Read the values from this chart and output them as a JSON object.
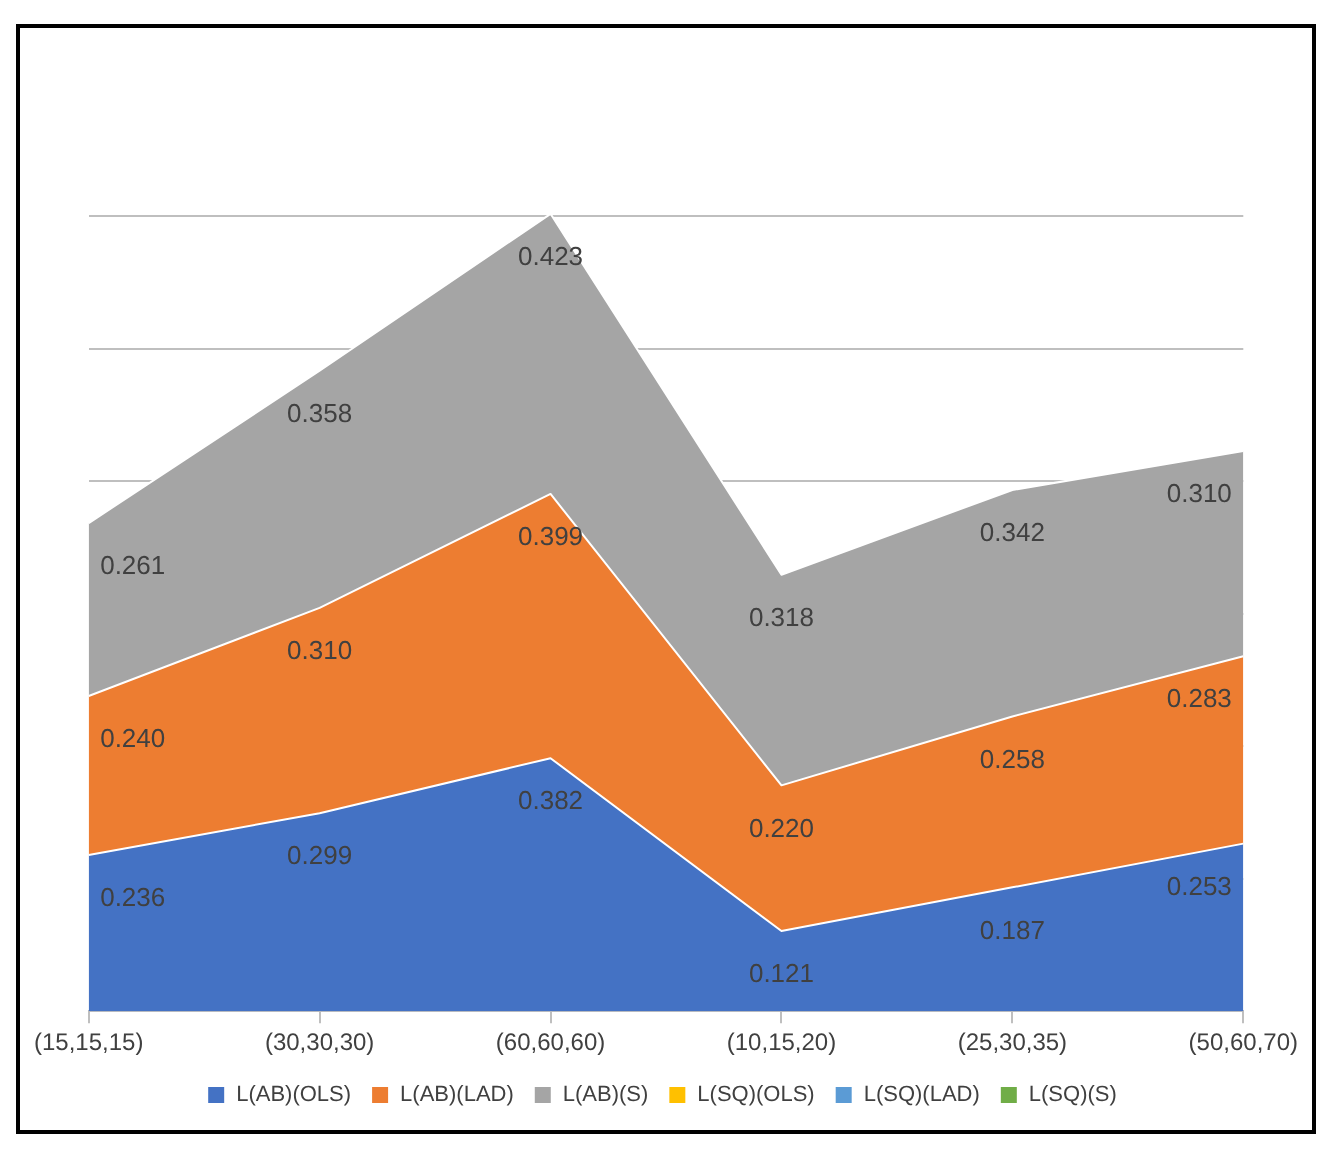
{
  "chart_data": {
    "type": "area",
    "stacked": true,
    "grid": "y",
    "legend": "bottom",
    "tick_labels": "x",
    "categories": [
      "(15,15,15)",
      "(30,30,30)",
      "(60,60,60)",
      "(10,15,20)",
      "(25,30,35)",
      "(50,60,70)"
    ],
    "yticks": [
      {
        "value": 0,
        "label": null
      },
      {
        "value": 0.2,
        "label": null
      },
      {
        "value": 0.4,
        "label": null
      },
      {
        "value": 0.6,
        "label": null
      },
      {
        "value": 0.8,
        "label": null
      },
      {
        "value": 1.0,
        "label": null
      },
      {
        "value": 1.2,
        "label": null
      }
    ],
    "series": [
      {
        "name": "L(AB)(OLS)",
        "color": "#4472c4",
        "values": [
          0.236,
          0.299,
          0.382,
          0.121,
          0.187,
          0.253
        ],
        "value_labels": [
          "0.236",
          "0.299",
          "0.382",
          "0.121",
          "0.187",
          "0.253"
        ]
      },
      {
        "name": "L(AB)(LAD)",
        "color": "#ed7d31",
        "values": [
          0.24,
          0.31,
          0.399,
          0.22,
          0.258,
          0.283
        ],
        "value_labels": [
          "0.240",
          "0.310",
          "0.399",
          "0.220",
          "0.258",
          "0.283"
        ]
      },
      {
        "name": "L(AB)(S)",
        "color": "#a5a5a5",
        "values": [
          0.261,
          0.358,
          0.423,
          0.318,
          0.342,
          0.31
        ],
        "value_labels": [
          "0.261",
          "0.358",
          "0.423",
          "0.318",
          "0.342",
          "0.310"
        ]
      },
      {
        "name": "L(SQ)(OLS)",
        "color": "#ffc000",
        "values": [
          null,
          null,
          null,
          null,
          null,
          null
        ]
      },
      {
        "name": "L(SQ)(LAD)",
        "color": "#5b9bd5",
        "values": [
          null,
          null,
          null,
          null,
          null,
          null
        ]
      },
      {
        "name": "L(SQ)(S)",
        "color": "#70ad47",
        "values": [
          null,
          null,
          null,
          null,
          null,
          null
        ]
      }
    ]
  }
}
